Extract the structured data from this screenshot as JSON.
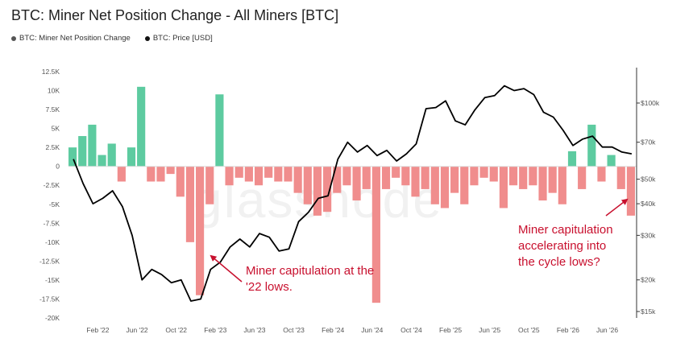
{
  "title": "BTC: Miner Net Position Change - All Miners [BTC]",
  "legend": [
    {
      "label": "BTC: Miner Net Position Change",
      "color": "#555555"
    },
    {
      "label": "BTC: Price [USD]",
      "color": "#111111"
    }
  ],
  "watermark": "glassnode",
  "colors": {
    "positive": "#5dcba0",
    "negative": "#f08d8d",
    "price": "#000000",
    "annotation": "#c8102e"
  },
  "chart_data": {
    "type": "bar",
    "x_ticks": [
      "Feb '22",
      "Jun '22",
      "Oct '22",
      "Feb '23",
      "Jun '23",
      "Oct '23",
      "Feb '24",
      "Jun '24",
      "Oct '24",
      "Feb '25",
      "Jun '25",
      "Oct '25",
      "Feb '26",
      "Jun '26"
    ],
    "xlim": [
      "2021-11",
      "2026-09"
    ],
    "y_left": {
      "ticks": [
        12500,
        10000,
        7500,
        5000,
        2500,
        0,
        -2500,
        -5000,
        -7500,
        -10000,
        -12500,
        -15000,
        -17500,
        -20000
      ],
      "tick_labels": [
        "12.5K",
        "10K",
        "7.5K",
        "5K",
        "2.5K",
        "0",
        "-2.5K",
        "-5K",
        "-7.5K",
        "-10K",
        "-12.5K",
        "-15K",
        "-17.5K",
        "-20K"
      ],
      "ylim": [
        -20000,
        12500
      ]
    },
    "y_right": {
      "scale": "log",
      "ticks": [
        100000,
        70000,
        50000,
        40000,
        30000,
        20000,
        15000
      ],
      "tick_labels": [
        "$100k",
        "$70k",
        "$50k",
        "$40k",
        "$30k",
        "$20k",
        "$15k"
      ]
    },
    "series": [
      {
        "name": "BTC: Miner Net Position Change",
        "axis": "left",
        "x": [
          "2021-11",
          "2021-12",
          "2022-01",
          "2022-02",
          "2022-03",
          "2022-04",
          "2022-05",
          "2022-06",
          "2022-07",
          "2022-08",
          "2022-09",
          "2022-10",
          "2022-11",
          "2022-12",
          "2023-01",
          "2023-02",
          "2023-03",
          "2023-04",
          "2023-05",
          "2023-06",
          "2023-07",
          "2023-08",
          "2023-09",
          "2023-10",
          "2023-11",
          "2023-12",
          "2024-01",
          "2024-02",
          "2024-03",
          "2024-04",
          "2024-05",
          "2024-06",
          "2024-07",
          "2024-08",
          "2024-09",
          "2024-10",
          "2024-11",
          "2024-12",
          "2025-01",
          "2025-02",
          "2025-03",
          "2025-04",
          "2025-05",
          "2025-06",
          "2025-07",
          "2025-08",
          "2025-09",
          "2025-10",
          "2025-11",
          "2025-12",
          "2026-01",
          "2026-02",
          "2026-03",
          "2026-04",
          "2026-05",
          "2026-06",
          "2026-07",
          "2026-08"
        ],
        "values": [
          2500,
          4000,
          5500,
          1500,
          3000,
          -2000,
          2500,
          10500,
          -2000,
          -2000,
          -1000,
          -4000,
          -10000,
          -17000,
          -5000,
          9500,
          -2500,
          -1500,
          -2000,
          -2500,
          -1500,
          -2000,
          -2000,
          -3500,
          -5000,
          -6500,
          -6000,
          -3500,
          -2500,
          -4500,
          -3000,
          -18000,
          -3000,
          -1500,
          -2500,
          -4000,
          -3000,
          -5000,
          -5500,
          -3500,
          -5000,
          -2500,
          -1500,
          -2000,
          -5500,
          -2500,
          -3000,
          -2500,
          -4500,
          -3500,
          -5000,
          2000,
          -3000,
          5500,
          -2000,
          1500,
          -3000,
          -6500
        ]
      },
      {
        "name": "BTC: Price [USD]",
        "axis": "right",
        "x": [
          "2021-11",
          "2021-12",
          "2022-01",
          "2022-02",
          "2022-03",
          "2022-04",
          "2022-05",
          "2022-06",
          "2022-07",
          "2022-08",
          "2022-09",
          "2022-10",
          "2022-11",
          "2022-12",
          "2023-01",
          "2023-02",
          "2023-03",
          "2023-04",
          "2023-05",
          "2023-06",
          "2023-07",
          "2023-08",
          "2023-09",
          "2023-10",
          "2023-11",
          "2023-12",
          "2024-01",
          "2024-02",
          "2024-03",
          "2024-04",
          "2024-05",
          "2024-06",
          "2024-07",
          "2024-08",
          "2024-09",
          "2024-10",
          "2024-11",
          "2024-12",
          "2025-01",
          "2025-02",
          "2025-03",
          "2025-04",
          "2025-05",
          "2025-06",
          "2025-07",
          "2025-08",
          "2025-09",
          "2025-10",
          "2025-11",
          "2025-12",
          "2026-01",
          "2026-02",
          "2026-03",
          "2026-04",
          "2026-05",
          "2026-06",
          "2026-07",
          "2026-08"
        ],
        "values": [
          60000,
          48000,
          40000,
          42000,
          45000,
          39000,
          30000,
          20000,
          22000,
          21000,
          19500,
          20000,
          16500,
          16800,
          22000,
          23500,
          27000,
          29000,
          27000,
          30500,
          29500,
          26000,
          26500,
          34000,
          37000,
          42000,
          43000,
          60000,
          70000,
          64000,
          68000,
          62000,
          65000,
          59000,
          63000,
          69000,
          95000,
          96000,
          102000,
          85000,
          82000,
          94000,
          105000,
          107000,
          117000,
          112000,
          114000,
          108000,
          92000,
          88000,
          78000,
          68000,
          72000,
          74000,
          67000,
          67000,
          64000,
          63000
        ]
      }
    ],
    "annotations": [
      "Miner capitulation at the '22 lows.",
      "Miner capitulation accelerating into the cycle lows?"
    ]
  }
}
